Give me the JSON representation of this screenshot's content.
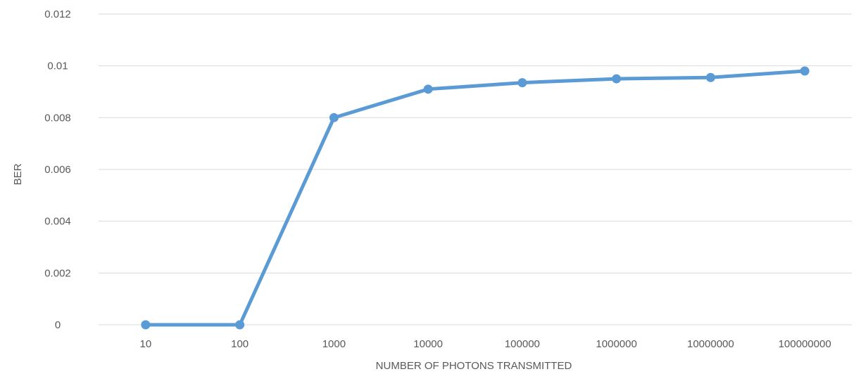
{
  "chart_data": {
    "type": "line",
    "title": "",
    "xlabel": "NUMBER OF PHOTONS TRANSMITTED",
    "ylabel": "BER",
    "categories": [
      "10",
      "100",
      "1000",
      "10000",
      "100000",
      "1000000",
      "10000000",
      "100000000"
    ],
    "y_ticks": [
      "0",
      "0.002",
      "0.004",
      "0.006",
      "0.008",
      "0.01",
      "0.012"
    ],
    "ylim": [
      0,
      0.012
    ],
    "grid": true,
    "legend": "none",
    "series": [
      {
        "values": [
          0,
          0,
          0.008,
          0.0091,
          0.00935,
          0.0095,
          0.00955,
          0.0098
        ],
        "color": "#5b9bd5"
      }
    ]
  }
}
